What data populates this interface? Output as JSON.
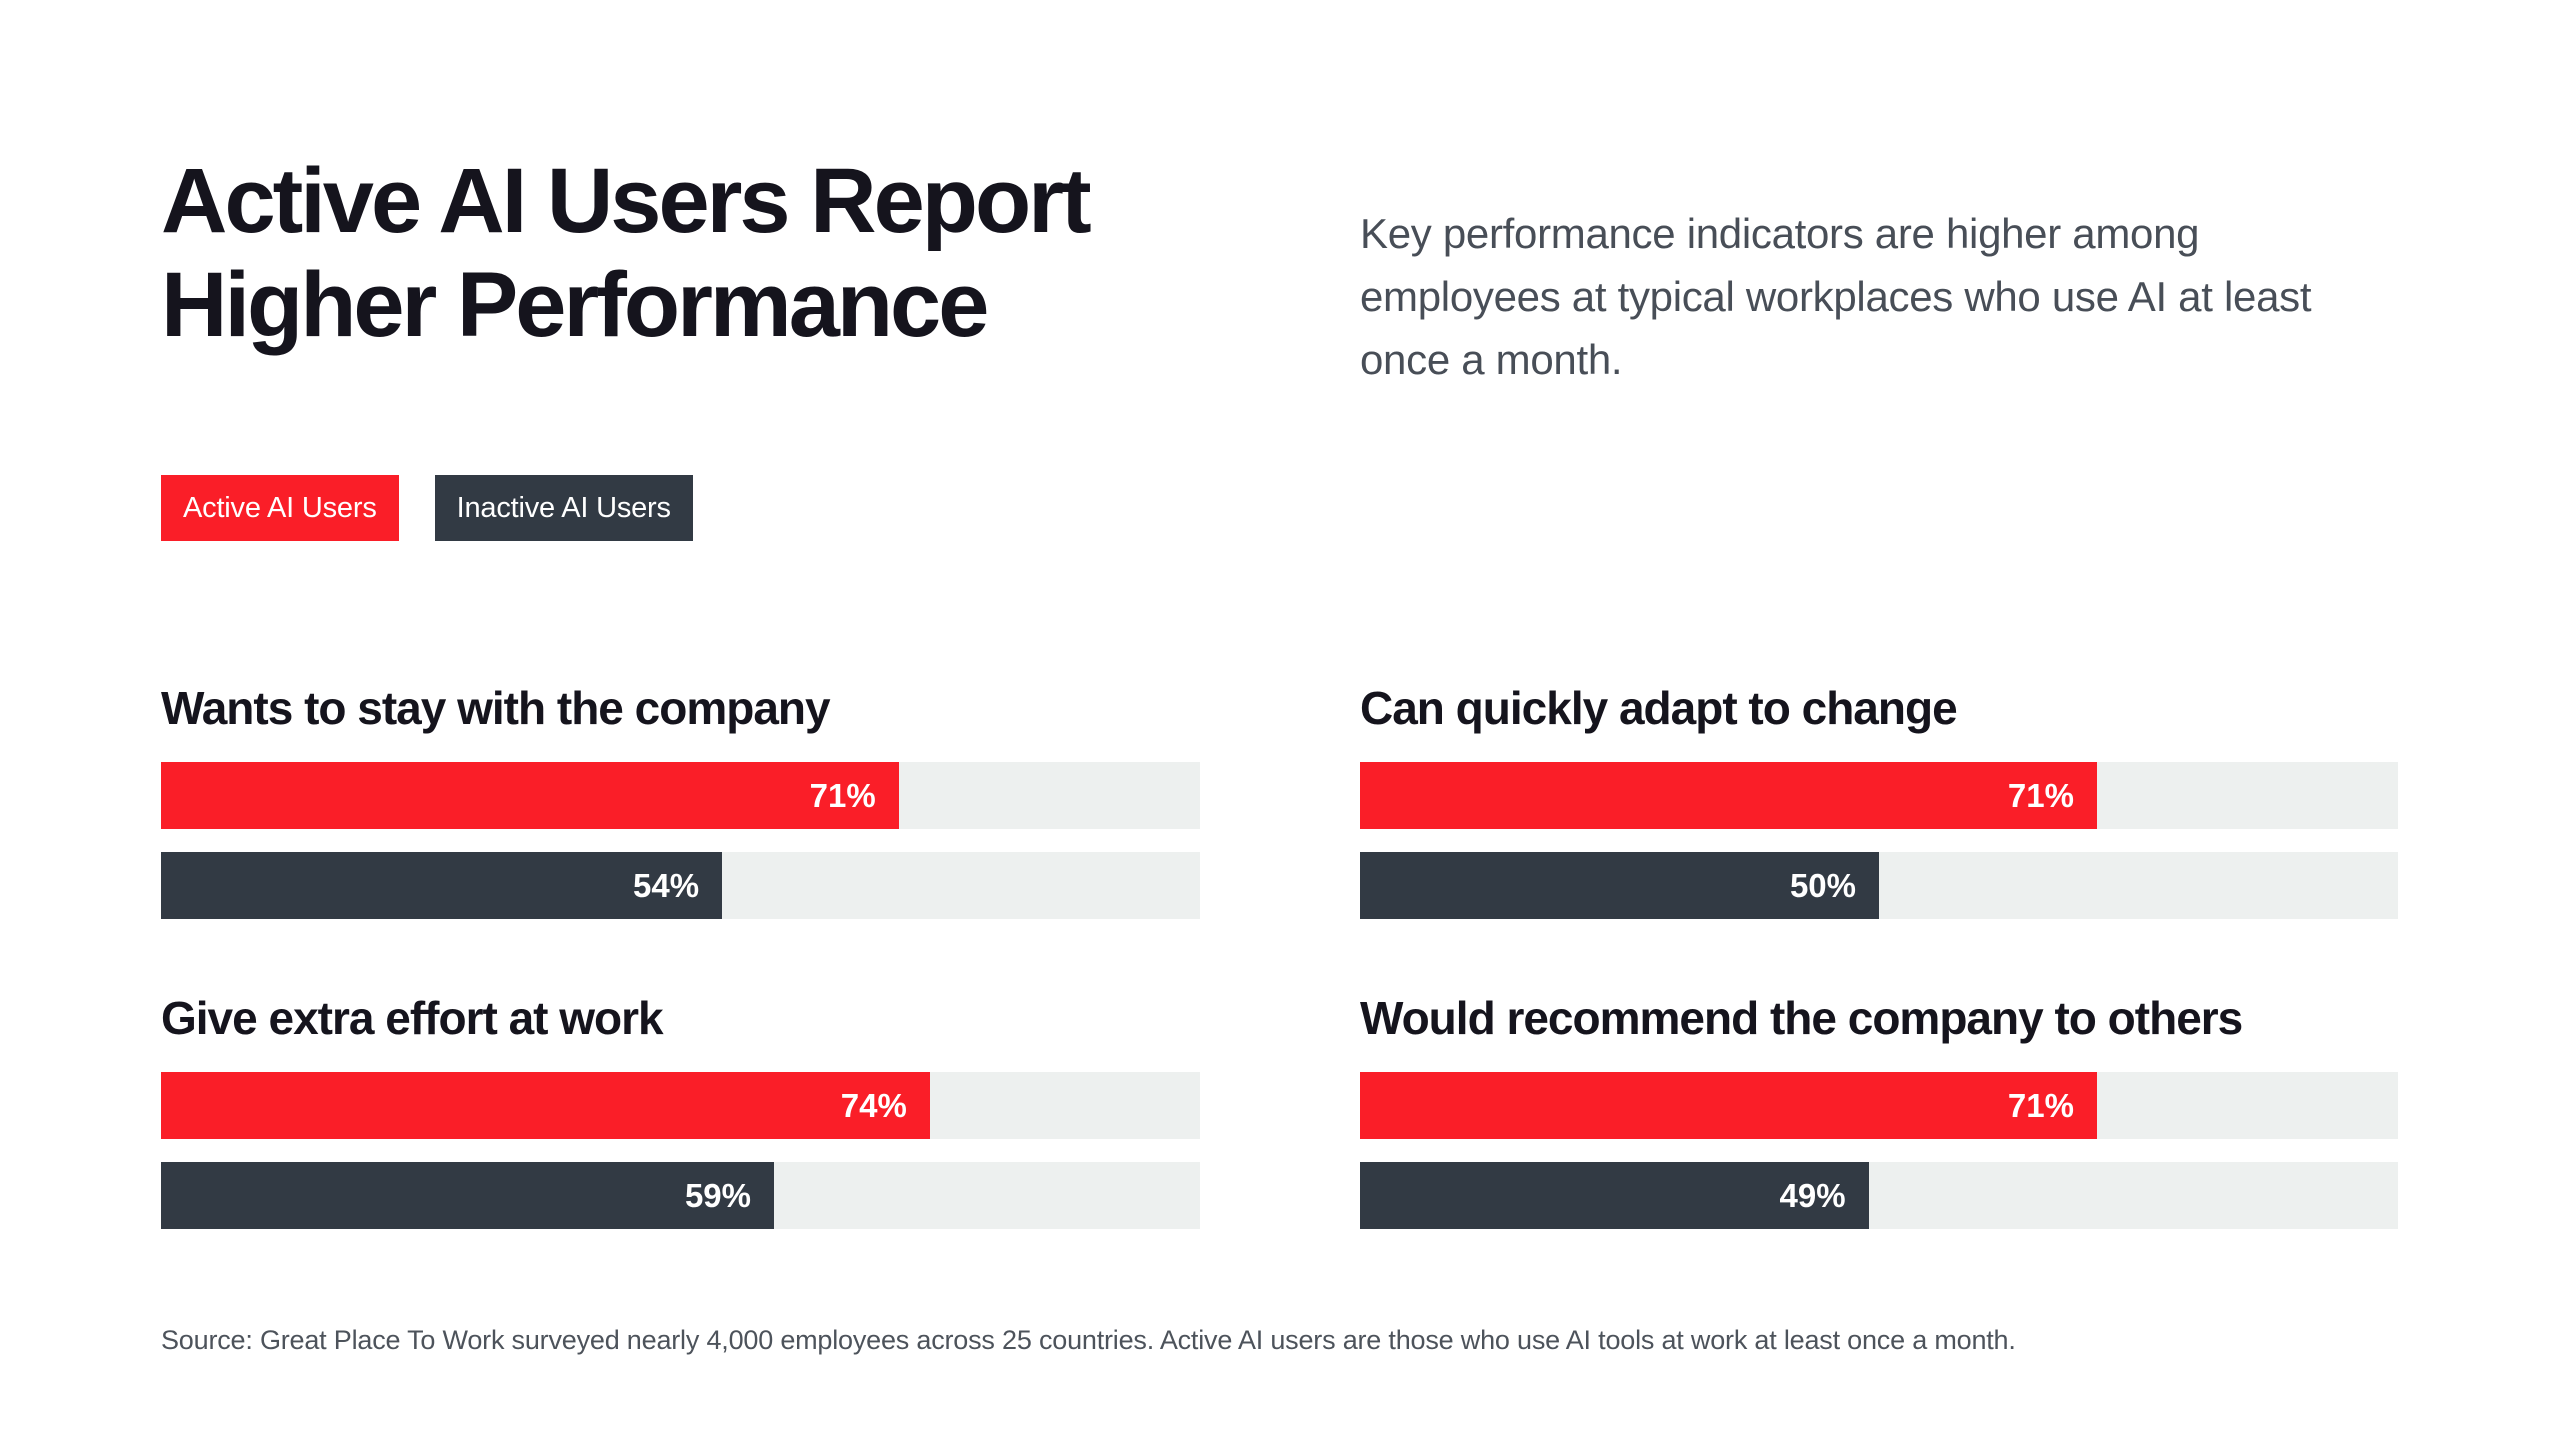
{
  "header": {
    "title_line1": "Active AI Users Report",
    "title_line2": "Higher Performance",
    "description": "Key performance indicators are higher among employees at typical workplaces who use AI at least once a month."
  },
  "legend": [
    {
      "label": "Active AI Users",
      "color": "#fa1e28"
    },
    {
      "label": "Inactive AI Users",
      "color": "#323a44"
    }
  ],
  "colors": {
    "active_bar": "#fa1e28",
    "inactive_bar": "#323a44",
    "bar_track": "#edf0ef",
    "title_text": "#15141d",
    "body_text": "#484e57",
    "background": "#ffffff"
  },
  "chart_data": {
    "type": "bar",
    "orientation": "horizontal",
    "unit": "%",
    "xlim": [
      0,
      100
    ],
    "grid": false,
    "legend_position": "top-left",
    "value_labels": "inside-end",
    "title": "Active AI Users Report Higher Performance",
    "subtitle": "Key performance indicators are higher among employees at typical workplaces who use AI at least once a month.",
    "categories": [
      "Wants to stay with the company",
      "Can quickly adapt to change",
      "Give extra effort at work",
      "Would recommend the company to others"
    ],
    "series": [
      {
        "name": "Active AI Users",
        "color": "#fa1e28",
        "values": [
          71,
          71,
          74,
          71
        ]
      },
      {
        "name": "Inactive AI Users",
        "color": "#323a44",
        "values": [
          54,
          50,
          59,
          49
        ]
      }
    ]
  },
  "groups": [
    {
      "title": "Wants to stay with the company",
      "active": {
        "value": 71,
        "label": "71%"
      },
      "inactive": {
        "value": 54,
        "label": "54%"
      }
    },
    {
      "title": "Can quickly adapt to change",
      "active": {
        "value": 71,
        "label": "71%"
      },
      "inactive": {
        "value": 50,
        "label": "50%"
      }
    },
    {
      "title": "Give extra effort at work",
      "active": {
        "value": 74,
        "label": "74%"
      },
      "inactive": {
        "value": 59,
        "label": "59%"
      }
    },
    {
      "title": "Would recommend the company to others",
      "active": {
        "value": 71,
        "label": "71%"
      },
      "inactive": {
        "value": 49,
        "label": "49%"
      }
    }
  ],
  "footer": {
    "source": "Source: Great Place To Work surveyed nearly 4,000 employees across 25 countries. Active AI users are those who use AI tools at work at least once a month."
  }
}
